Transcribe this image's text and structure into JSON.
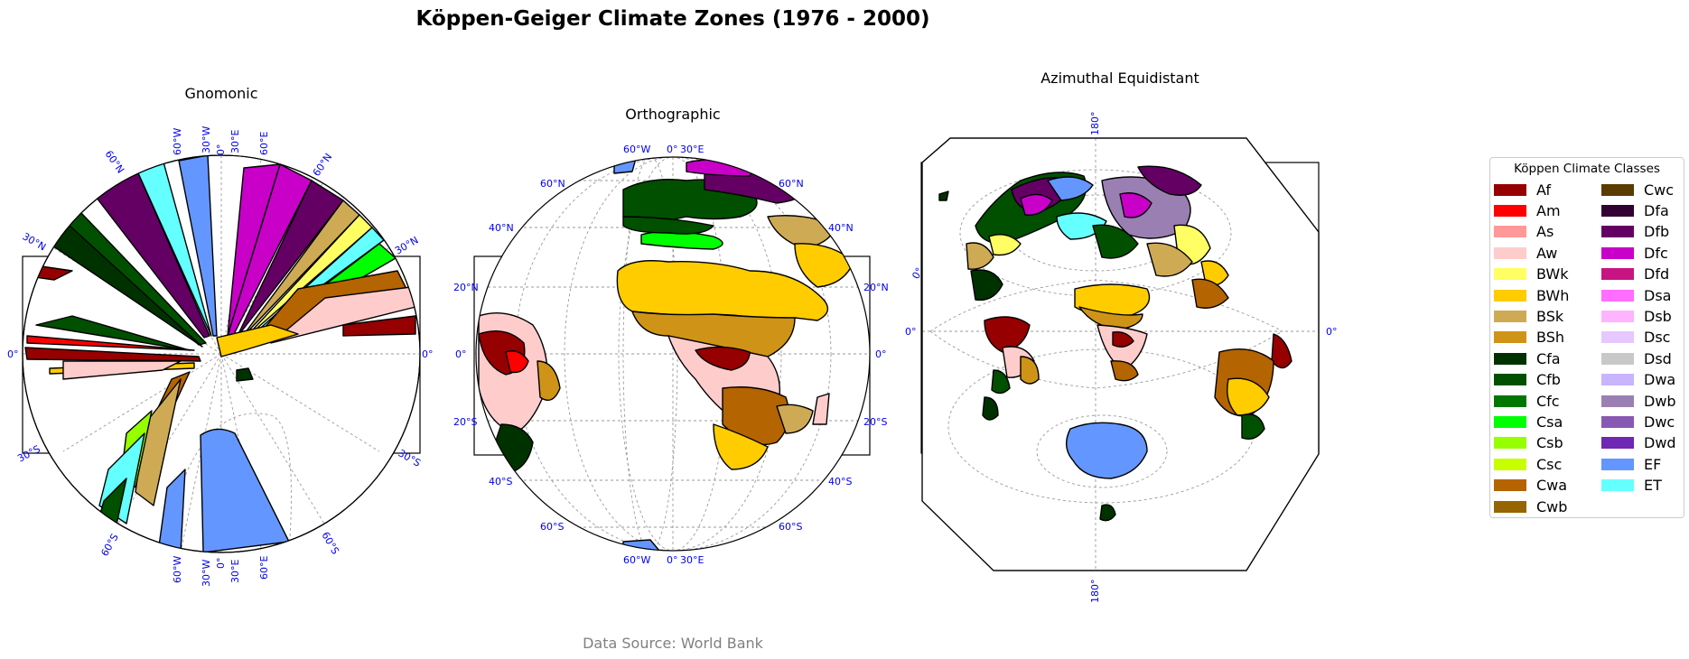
{
  "figure": {
    "title": "Köppen-Geiger Climate Zones (1976 - 2000)",
    "source": "Data Source: World Bank"
  },
  "maps": [
    {
      "name": "Gnomonic",
      "ticks": {
        "top": [
          "60°W",
          "30°W",
          "0°",
          "30°E",
          "60°E"
        ],
        "bottom": [
          "60°W",
          "30°W",
          "0°",
          "30°E",
          "60°E"
        ],
        "upper_left": [
          "60°N",
          "30°N"
        ],
        "upper_right": [
          "60°N",
          "30°N"
        ],
        "lower_left": [
          "30°S",
          "60°S"
        ],
        "lower_right": [
          "30°S",
          "60°S"
        ],
        "left": "0°",
        "right": "0°"
      }
    },
    {
      "name": "Orthographic",
      "ticks": {
        "top": [
          "60°W",
          "0°",
          "30°E"
        ],
        "bottom": [
          "60°W",
          "0°",
          "30°E"
        ],
        "left": [
          "60°N",
          "40°N",
          "20°N",
          "0°",
          "20°S",
          "40°S",
          "60°S"
        ],
        "right": [
          "60°N",
          "40°N",
          "20°N",
          "0°",
          "20°S",
          "40°S",
          "60°S"
        ]
      }
    },
    {
      "name": "Azimuthal Equidistant",
      "ticks": {
        "top": "180°",
        "bottom": "180°",
        "left_upper": "0°",
        "left": "0°",
        "right": "0°"
      }
    }
  ],
  "legend": {
    "title": "Köppen Climate Classes",
    "entries": [
      {
        "label": "Af",
        "color": "#960000"
      },
      {
        "label": "Am",
        "color": "#ff0000"
      },
      {
        "label": "As",
        "color": "#ff9999"
      },
      {
        "label": "Aw",
        "color": "#ffcccc"
      },
      {
        "label": "BWk",
        "color": "#ffff64"
      },
      {
        "label": "BWh",
        "color": "#ffcc00"
      },
      {
        "label": "BSk",
        "color": "#cfaa55"
      },
      {
        "label": "BSh",
        "color": "#cf9417"
      },
      {
        "label": "Cfa",
        "color": "#003200"
      },
      {
        "label": "Cfb",
        "color": "#005000"
      },
      {
        "label": "Cfc",
        "color": "#007800"
      },
      {
        "label": "Csa",
        "color": "#00ff00"
      },
      {
        "label": "Csb",
        "color": "#96ff00"
      },
      {
        "label": "Csc",
        "color": "#c8ff00"
      },
      {
        "label": "Cwa",
        "color": "#b46400"
      },
      {
        "label": "Cwb",
        "color": "#966400"
      },
      {
        "label": "Cwc",
        "color": "#5a3c00"
      },
      {
        "label": "Dfa",
        "color": "#320032"
      },
      {
        "label": "Dfb",
        "color": "#640064"
      },
      {
        "label": "Dfc",
        "color": "#c800c8"
      },
      {
        "label": "Dfd",
        "color": "#c81482"
      },
      {
        "label": "Dsa",
        "color": "#ff6eff"
      },
      {
        "label": "Dsb",
        "color": "#ffb4ff"
      },
      {
        "label": "Dsc",
        "color": "#e6c8ff"
      },
      {
        "label": "Dsd",
        "color": "#c8c8c8"
      },
      {
        "label": "Dwa",
        "color": "#c8b4ff"
      },
      {
        "label": "Dwb",
        "color": "#9a7fb3"
      },
      {
        "label": "Dwc",
        "color": "#8759b3"
      },
      {
        "label": "Dwd",
        "color": "#6e28b4"
      },
      {
        "label": "EF",
        "color": "#6496ff"
      },
      {
        "label": "ET",
        "color": "#64ffff"
      }
    ]
  }
}
